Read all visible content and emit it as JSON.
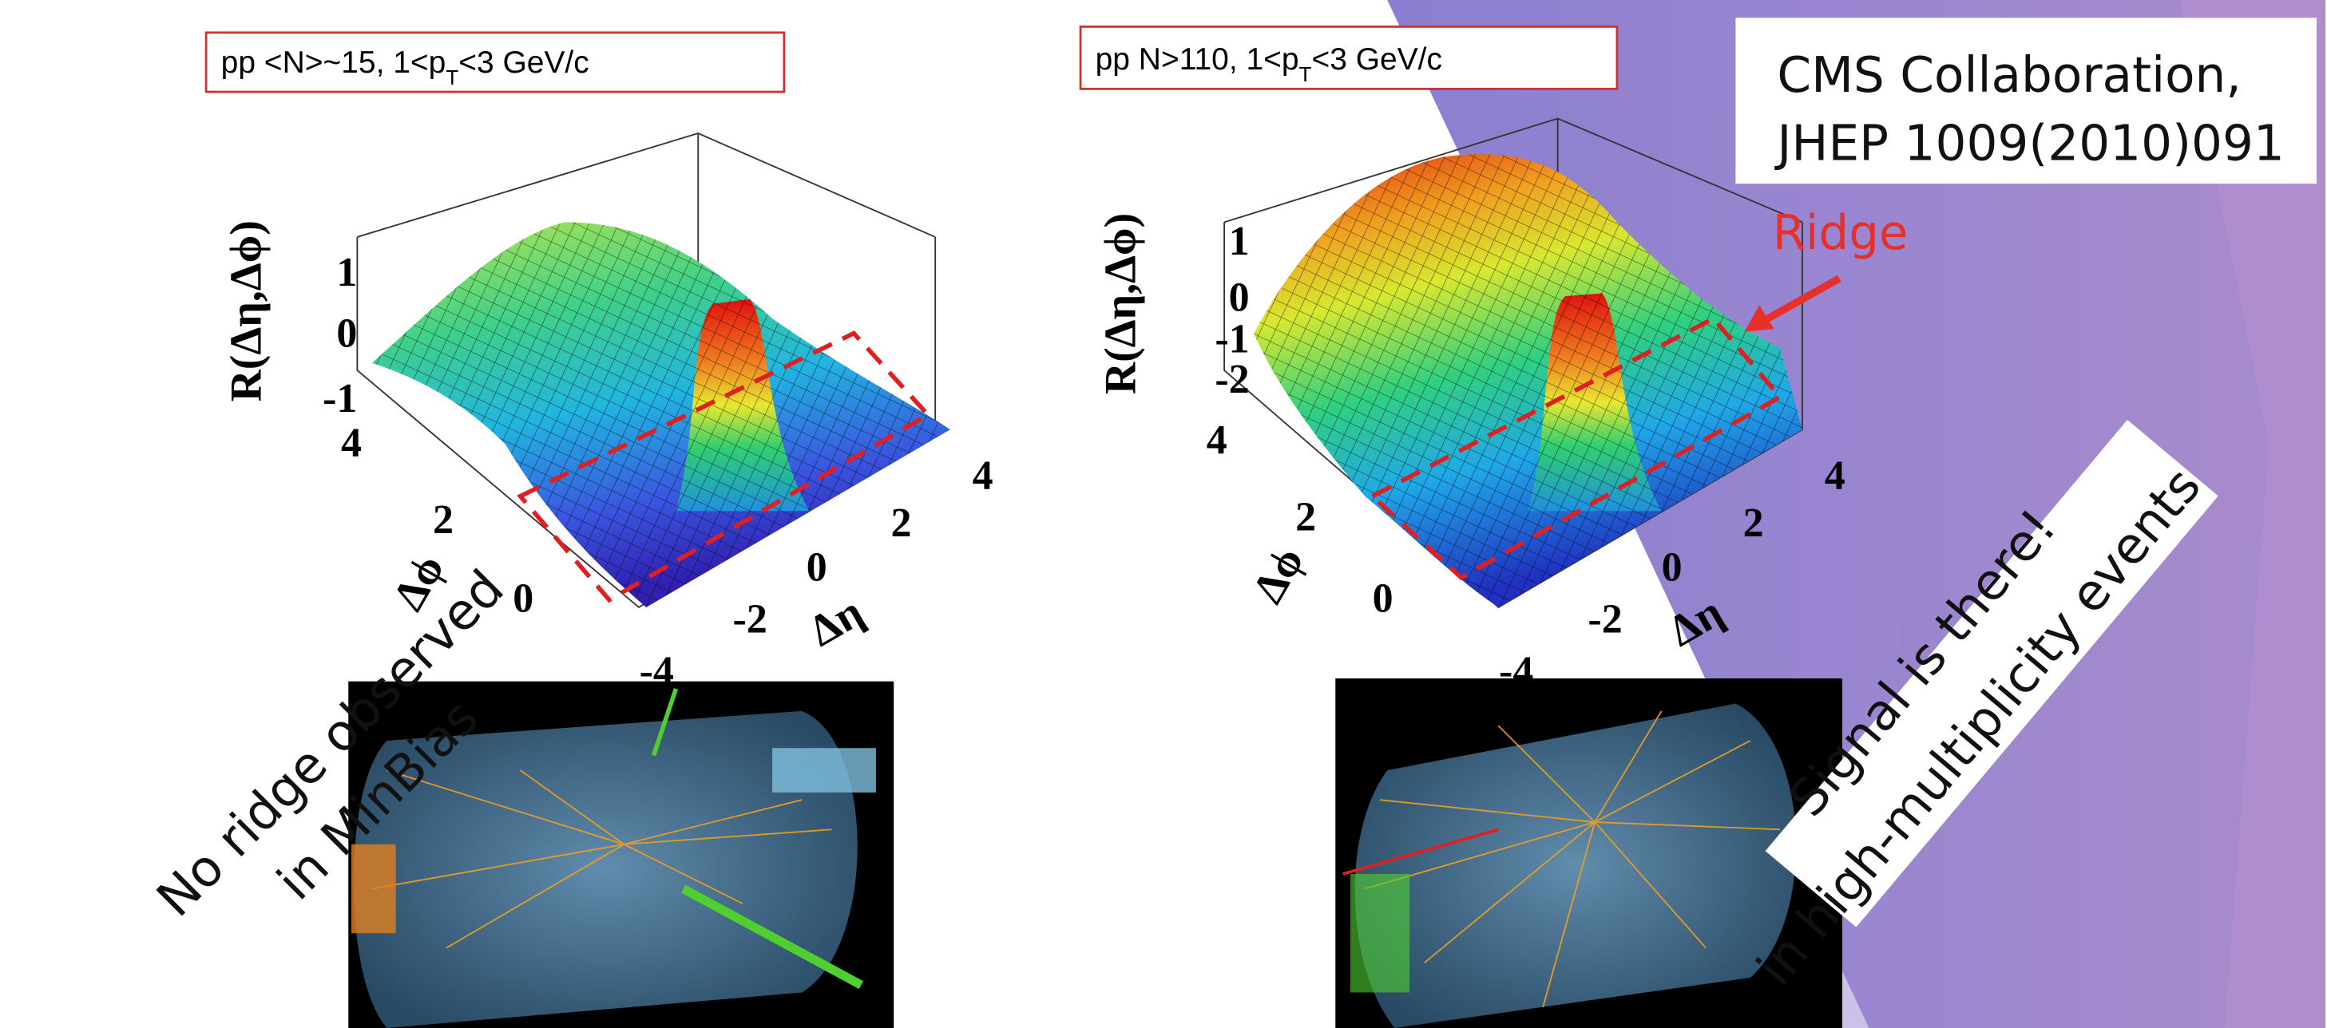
{
  "left_panel": {
    "label": {
      "prefix": "pp <N>~15, 1<p",
      "sub": "T",
      "suffix": "<3 GeV/c"
    },
    "z_title": "R(Δη,Δϕ)",
    "z_ticks": [
      "1",
      "0",
      "-1"
    ],
    "phi_title": "Δϕ",
    "phi_ticks": [
      "4",
      "2",
      "0"
    ],
    "eta_title": "Δη",
    "eta_ticks": [
      "-4",
      "-2",
      "0",
      "2",
      "4"
    ]
  },
  "right_panel": {
    "label": {
      "prefix": "pp N>110, 1<p",
      "sub": "T",
      "suffix": "<3 GeV/c"
    },
    "z_title": "R(Δη,Δϕ)",
    "z_ticks": [
      "1",
      "0",
      "-1",
      "-2"
    ],
    "phi_title": "Δϕ",
    "phi_ticks": [
      "4",
      "2",
      "0"
    ],
    "eta_title": "Δη",
    "eta_ticks": [
      "-4",
      "-2",
      "0",
      "2",
      "4"
    ],
    "callout": "Ridge"
  },
  "citation": [
    "CMS Collaboration,",
    "JHEP 1009(2010)091"
  ],
  "left_note": [
    "No ridge observed",
    "in MinBias"
  ],
  "right_note": [
    "Signal is there!",
    "in high-multiplicity events"
  ]
}
